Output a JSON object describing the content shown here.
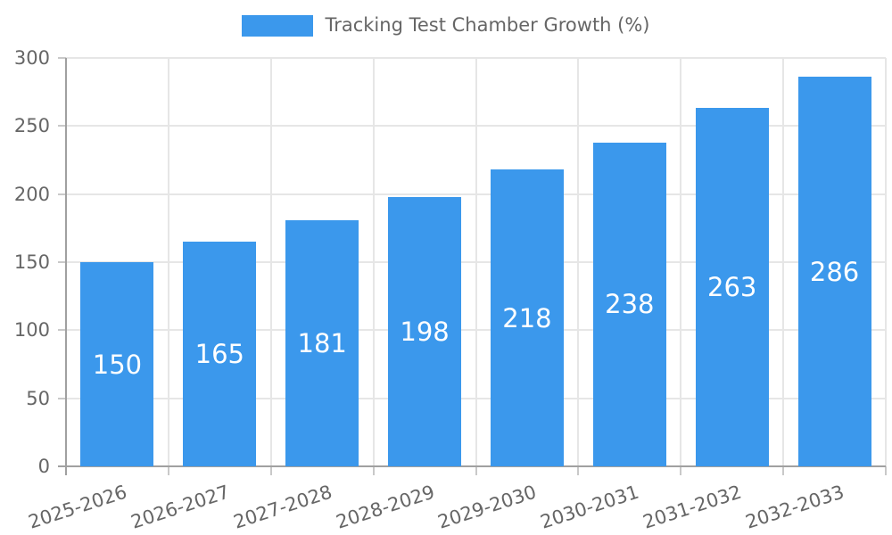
{
  "chart_data": {
    "type": "bar",
    "title": "Tracking Test Chamber Growth (%)",
    "categories": [
      "2025-2026",
      "2026-2027",
      "2027-2028",
      "2028-2029",
      "2029-2030",
      "2030-2031",
      "2031-2032",
      "2032-2033"
    ],
    "values": [
      150,
      165,
      181,
      198,
      218,
      238,
      263,
      286
    ],
    "xlabel": "",
    "ylabel": "",
    "ylim": [
      0,
      300
    ],
    "yticks": [
      0,
      50,
      100,
      150,
      200,
      250,
      300
    ],
    "grid": true,
    "legend_position": "top",
    "x_label_rotation_deg": -18,
    "colors": {
      "bar": "#3b98ec",
      "value_label": "#ffffff",
      "axis_text": "#666666",
      "gridline": "#e6e6e6",
      "axis_line": "#a0a0a0",
      "tick_mark": "#c9c9c9",
      "background": "#ffffff"
    }
  }
}
